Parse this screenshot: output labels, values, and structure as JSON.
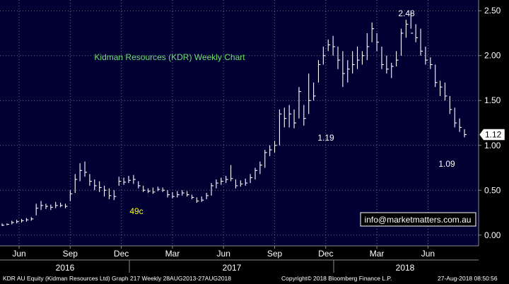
{
  "chart_data": {
    "type": "bar",
    "title": "Kidman Resources (KDR) Weekly Chart",
    "ylim": [
      -0.12,
      2.62
    ],
    "y_ticks": [
      "0.00",
      "0.50",
      "1.00",
      "1.50",
      "2.00",
      "2.50"
    ],
    "x_month_labels": [
      "Jun",
      "Sep",
      "Dec",
      "Mar",
      "Jun",
      "Sep",
      "Dec",
      "Mar",
      "Jun"
    ],
    "x_year_labels": [
      "2016",
      "2017",
      "2018"
    ],
    "last_price_label": "1.12",
    "annotations": [
      "49c",
      "1.19",
      "2.48",
      "1.09"
    ],
    "watermark": "info@marketmatters.com.au",
    "series": [
      {
        "values": [
          [
            0.1,
            0.13,
            0.11
          ],
          [
            0.11,
            0.13,
            0.12
          ],
          [
            0.12,
            0.16,
            0.14
          ],
          [
            0.13,
            0.17,
            0.15
          ],
          [
            0.14,
            0.18,
            0.16
          ],
          [
            0.15,
            0.19,
            0.17
          ],
          [
            0.16,
            0.2,
            0.18
          ],
          [
            0.22,
            0.35,
            0.3
          ],
          [
            0.28,
            0.38,
            0.33
          ],
          [
            0.29,
            0.35,
            0.32
          ],
          [
            0.28,
            0.34,
            0.31
          ],
          [
            0.3,
            0.37,
            0.33
          ],
          [
            0.31,
            0.36,
            0.33
          ],
          [
            0.3,
            0.35,
            0.32
          ],
          [
            0.38,
            0.5,
            0.46
          ],
          [
            0.47,
            0.68,
            0.62
          ],
          [
            0.6,
            0.8,
            0.72
          ],
          [
            0.65,
            0.82,
            0.7
          ],
          [
            0.55,
            0.68,
            0.6
          ],
          [
            0.5,
            0.62,
            0.55
          ],
          [
            0.48,
            0.6,
            0.53
          ],
          [
            0.43,
            0.55,
            0.5
          ],
          [
            0.4,
            0.52,
            0.44
          ],
          [
            0.39,
            0.5,
            0.43
          ],
          [
            0.55,
            0.65,
            0.6
          ],
          [
            0.56,
            0.64,
            0.59
          ],
          [
            0.58,
            0.66,
            0.61
          ],
          [
            0.57,
            0.67,
            0.62
          ],
          [
            0.52,
            0.6,
            0.55
          ],
          [
            0.48,
            0.55,
            0.5
          ],
          [
            0.47,
            0.52,
            0.49
          ],
          [
            0.46,
            0.53,
            0.48
          ],
          [
            0.49,
            0.54,
            0.51
          ],
          [
            0.48,
            0.53,
            0.5
          ],
          [
            0.42,
            0.5,
            0.45
          ],
          [
            0.41,
            0.48,
            0.43
          ],
          [
            0.42,
            0.49,
            0.45
          ],
          [
            0.44,
            0.5,
            0.47
          ],
          [
            0.43,
            0.49,
            0.45
          ],
          [
            0.4,
            0.45,
            0.42
          ],
          [
            0.36,
            0.42,
            0.38
          ],
          [
            0.37,
            0.43,
            0.39
          ],
          [
            0.4,
            0.47,
            0.44
          ],
          [
            0.44,
            0.58,
            0.55
          ],
          [
            0.52,
            0.62,
            0.58
          ],
          [
            0.56,
            0.64,
            0.6
          ],
          [
            0.58,
            0.66,
            0.62
          ],
          [
            0.6,
            0.78,
            0.63
          ],
          [
            0.52,
            0.62,
            0.55
          ],
          [
            0.54,
            0.61,
            0.57
          ],
          [
            0.55,
            0.63,
            0.58
          ],
          [
            0.58,
            0.68,
            0.64
          ],
          [
            0.62,
            0.75,
            0.72
          ],
          [
            0.68,
            0.82,
            0.78
          ],
          [
            0.75,
            0.95,
            0.92
          ],
          [
            0.88,
            1.0,
            0.95
          ],
          [
            0.92,
            1.05,
            1.0
          ],
          [
            1.0,
            1.4,
            1.35
          ],
          [
            1.2,
            1.42,
            1.3
          ],
          [
            1.2,
            1.45,
            1.35
          ],
          [
            1.19,
            1.4,
            1.25
          ],
          [
            1.3,
            1.65,
            1.6
          ],
          [
            1.22,
            1.45,
            1.3
          ],
          [
            1.35,
            1.8,
            1.5
          ],
          [
            1.5,
            1.7,
            1.55
          ],
          [
            1.7,
            1.95,
            1.9
          ],
          [
            1.9,
            2.1,
            2.0
          ],
          [
            2.05,
            2.18,
            2.12
          ],
          [
            2.0,
            2.22,
            2.1
          ],
          [
            1.85,
            2.1,
            1.95
          ],
          [
            1.65,
            2.05,
            1.8
          ],
          [
            1.7,
            1.95,
            1.85
          ],
          [
            1.8,
            2.05,
            1.9
          ],
          [
            1.85,
            2.1,
            1.95
          ],
          [
            1.9,
            2.05,
            2.0
          ],
          [
            1.95,
            2.25,
            2.1
          ],
          [
            2.15,
            2.37,
            2.3
          ],
          [
            2.05,
            2.25,
            2.15
          ],
          [
            1.85,
            2.1,
            1.9
          ],
          [
            1.8,
            2.0,
            1.85
          ],
          [
            1.75,
            1.92,
            1.88
          ],
          [
            1.88,
            2.05,
            1.95
          ],
          [
            2.0,
            2.3,
            2.25
          ],
          [
            2.2,
            2.4,
            2.35
          ],
          [
            2.3,
            2.48,
            2.25
          ],
          [
            2.15,
            2.35,
            2.2
          ],
          [
            2.0,
            2.3,
            2.05
          ],
          [
            1.9,
            2.1,
            1.95
          ],
          [
            1.85,
            1.98,
            1.9
          ],
          [
            1.65,
            1.9,
            1.7
          ],
          [
            1.55,
            1.72,
            1.65
          ],
          [
            1.5,
            1.7,
            1.55
          ],
          [
            1.35,
            1.55,
            1.4
          ],
          [
            1.2,
            1.42,
            1.25
          ],
          [
            1.15,
            1.3,
            1.2
          ],
          [
            1.09,
            1.18,
            1.12
          ]
        ]
      }
    ]
  },
  "footer": {
    "left": "KDR AU Equity (Kidman Resources Ltd) Graph 217  Weekly 28AUG2013-27AUG2018",
    "center": "Copyright© 2018 Bloomberg Finance L.P.",
    "right": "27-Aug-2018 08:50:56"
  }
}
